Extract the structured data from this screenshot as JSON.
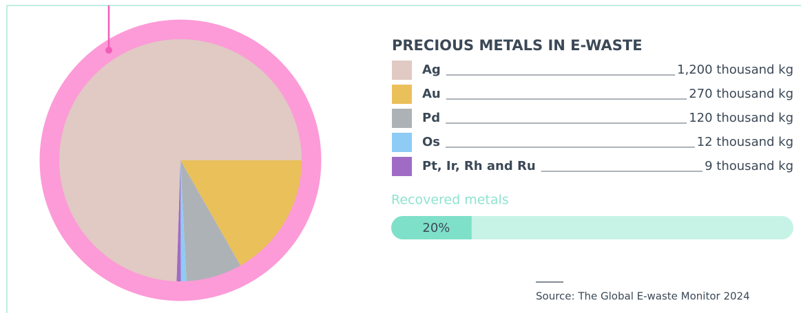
{
  "chart_data": {
    "type": "pie",
    "title": "PRECIOUS METALS IN E-WASTE",
    "categories": [
      "Ag",
      "Au",
      "Pd",
      "Os",
      "Pt, Ir, Rh and Ru"
    ],
    "values": [
      1200,
      270,
      120,
      12,
      9
    ],
    "value_labels": [
      "1,200 thousand kg",
      "270 thousand kg",
      "120 thousand kg",
      "12 thousand kg",
      "9 thousand kg"
    ],
    "colors": [
      "#e0cac3",
      "#eac05a",
      "#adb2b7",
      "#8ecbf5",
      "#a06bc4"
    ],
    "recovered": {
      "label": "Recovered metals",
      "value": 20,
      "value_label": "20%",
      "lim": [
        0,
        100
      ]
    },
    "source": "Source: The Global E-waste Monitor 2024"
  }
}
